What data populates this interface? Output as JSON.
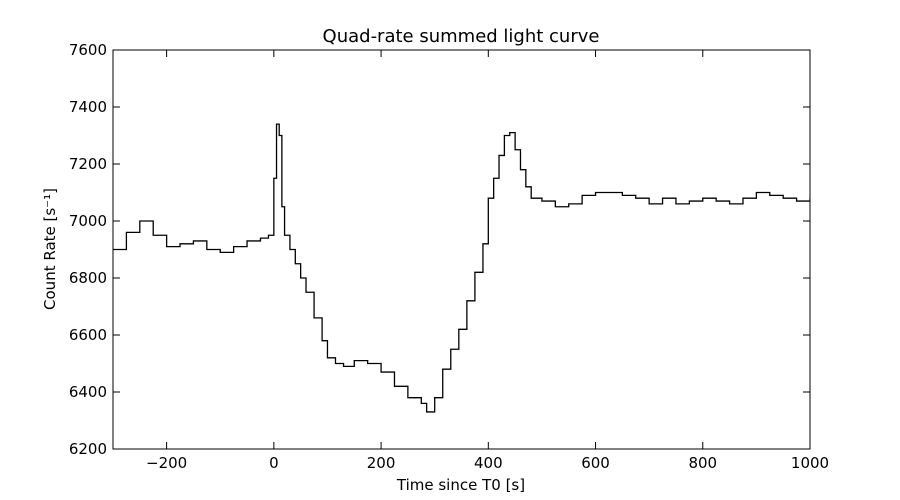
{
  "chart_data": {
    "type": "line",
    "title": "Quad-rate summed light curve",
    "xlabel": "Time since T0 [s]",
    "ylabel": "Count Rate [s⁻¹]",
    "xlim": [
      -300,
      1000
    ],
    "ylim": [
      6200,
      7600
    ],
    "xticks": [
      -200,
      0,
      200,
      400,
      600,
      800,
      1000
    ],
    "xtick_labels": [
      "−200",
      "0",
      "200",
      "400",
      "600",
      "800",
      "1000"
    ],
    "yticks": [
      6200,
      6400,
      6600,
      6800,
      7000,
      7200,
      7400,
      7600
    ],
    "ytick_labels": [
      "6200",
      "6400",
      "6600",
      "6800",
      "7000",
      "7200",
      "7400",
      "7600"
    ],
    "grid": false,
    "legend": "none",
    "line_color": "#000000",
    "series": [
      {
        "x": [
          -300,
          -275,
          -250,
          -225,
          -200,
          -175,
          -150,
          -125,
          -100,
          -75,
          -50,
          -25,
          -10,
          0,
          5,
          10,
          15,
          20,
          30,
          40,
          50,
          60,
          75,
          90,
          100,
          115,
          130,
          150,
          175,
          200,
          225,
          250,
          275,
          285,
          300,
          315,
          330,
          345,
          360,
          375,
          390,
          400,
          410,
          420,
          430,
          440,
          450,
          460,
          470,
          480,
          500,
          525,
          550,
          575,
          600,
          625,
          650,
          675,
          700,
          725,
          750,
          775,
          800,
          825,
          850,
          875,
          900,
          925,
          950,
          975,
          1000
        ],
        "y": [
          6900,
          6960,
          7000,
          6950,
          6910,
          6920,
          6930,
          6900,
          6890,
          6910,
          6930,
          6940,
          6950,
          7150,
          7340,
          7300,
          7050,
          6950,
          6900,
          6850,
          6800,
          6750,
          6660,
          6580,
          6520,
          6500,
          6490,
          6510,
          6500,
          6470,
          6420,
          6380,
          6360,
          6330,
          6380,
          6480,
          6550,
          6620,
          6720,
          6820,
          6920,
          7080,
          7150,
          7230,
          7300,
          7310,
          7250,
          7180,
          7120,
          7080,
          7070,
          7050,
          7060,
          7090,
          7100,
          7100,
          7090,
          7080,
          7060,
          7080,
          7060,
          7070,
          7080,
          7070,
          7060,
          7080,
          7100,
          7090,
          7080,
          7070,
          7080
        ]
      }
    ]
  }
}
